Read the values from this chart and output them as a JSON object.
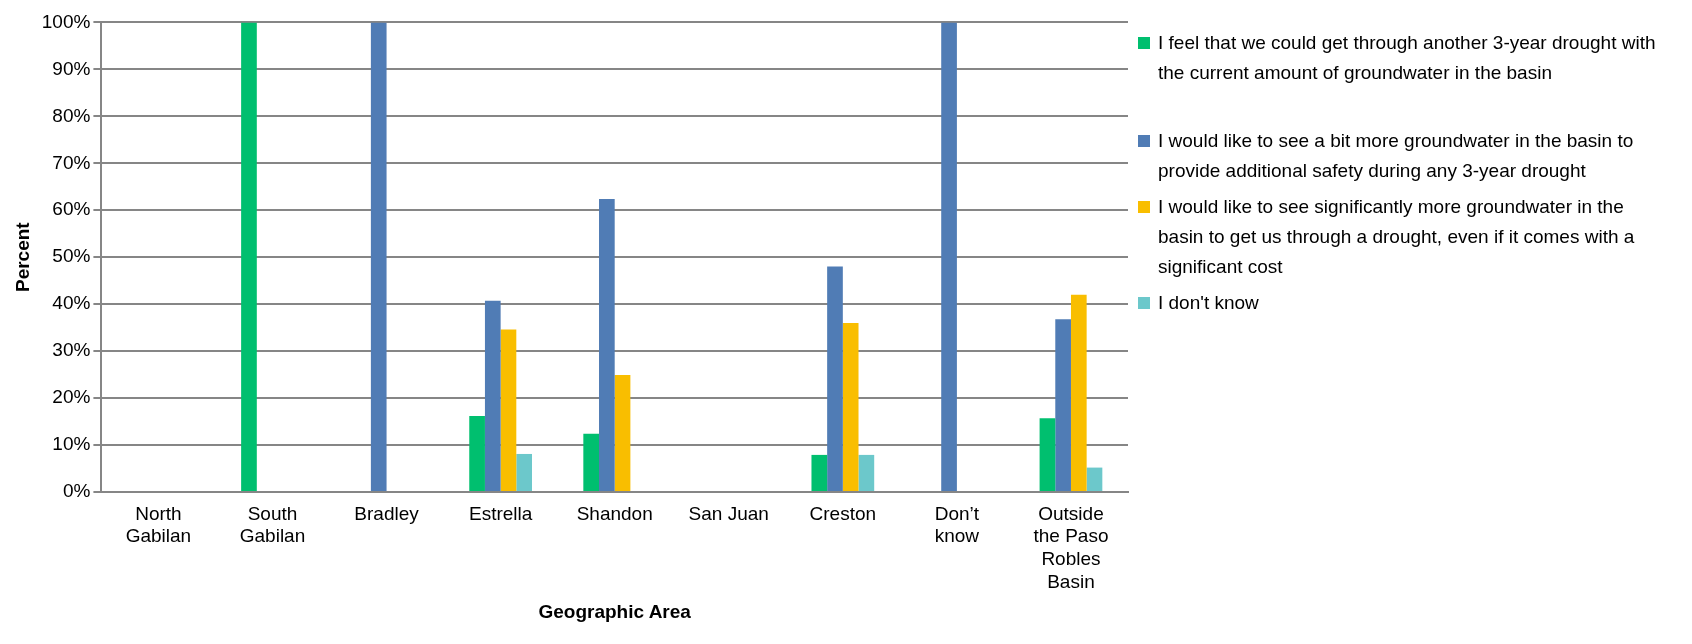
{
  "chart_data": {
    "type": "bar",
    "xlabel": "Geographic Area",
    "ylabel": "Percent",
    "categories": [
      "North Gabilan",
      "South Gabilan",
      "Bradley",
      "Estrella",
      "Shandon",
      "San Juan",
      "Creston",
      "Don’t know",
      "Outside the Paso Robles Basin"
    ],
    "series": [
      {
        "name": "I feel that we could get through another 3-year drought with the current amount of groundwater in the basin",
        "color": "#00bf6f",
        "values": [
          0,
          100,
          0,
          16.2,
          12.4,
          0,
          7.9,
          0,
          15.7
        ]
      },
      {
        "name": "I would like to see a bit more groundwater in the basin to provide additional safety during any 3-year drought",
        "color": "#507cb5",
        "values": [
          0,
          0,
          100,
          40.7,
          62.4,
          0,
          48.0,
          100,
          36.8
        ]
      },
      {
        "name": "I would like to see significantly more groundwater in the basin to get us through a drought, even if it comes with a significant cost",
        "color": "#f9be00",
        "values": [
          0,
          0,
          0,
          34.6,
          24.9,
          0,
          36.0,
          0,
          42.0
        ]
      },
      {
        "name": "I don't know",
        "color": "#6cc8cb",
        "values": [
          0,
          0,
          0,
          8.1,
          0,
          0,
          7.9,
          0,
          5.2
        ]
      }
    ],
    "ylim": [
      0,
      100
    ],
    "yticks": [
      {
        "value": 0,
        "label": "0%"
      },
      {
        "value": 10,
        "label": "10%"
      },
      {
        "value": 20,
        "label": "20%"
      },
      {
        "value": 30,
        "label": "30%"
      },
      {
        "value": 40,
        "label": "40%"
      },
      {
        "value": 50,
        "label": "50%"
      },
      {
        "value": 60,
        "label": "60%"
      },
      {
        "value": 70,
        "label": "70%"
      },
      {
        "value": 80,
        "label": "80%"
      },
      {
        "value": 90,
        "label": "90%"
      },
      {
        "value": 100,
        "label": "100%"
      }
    ],
    "grid": "y",
    "legend": "right"
  }
}
